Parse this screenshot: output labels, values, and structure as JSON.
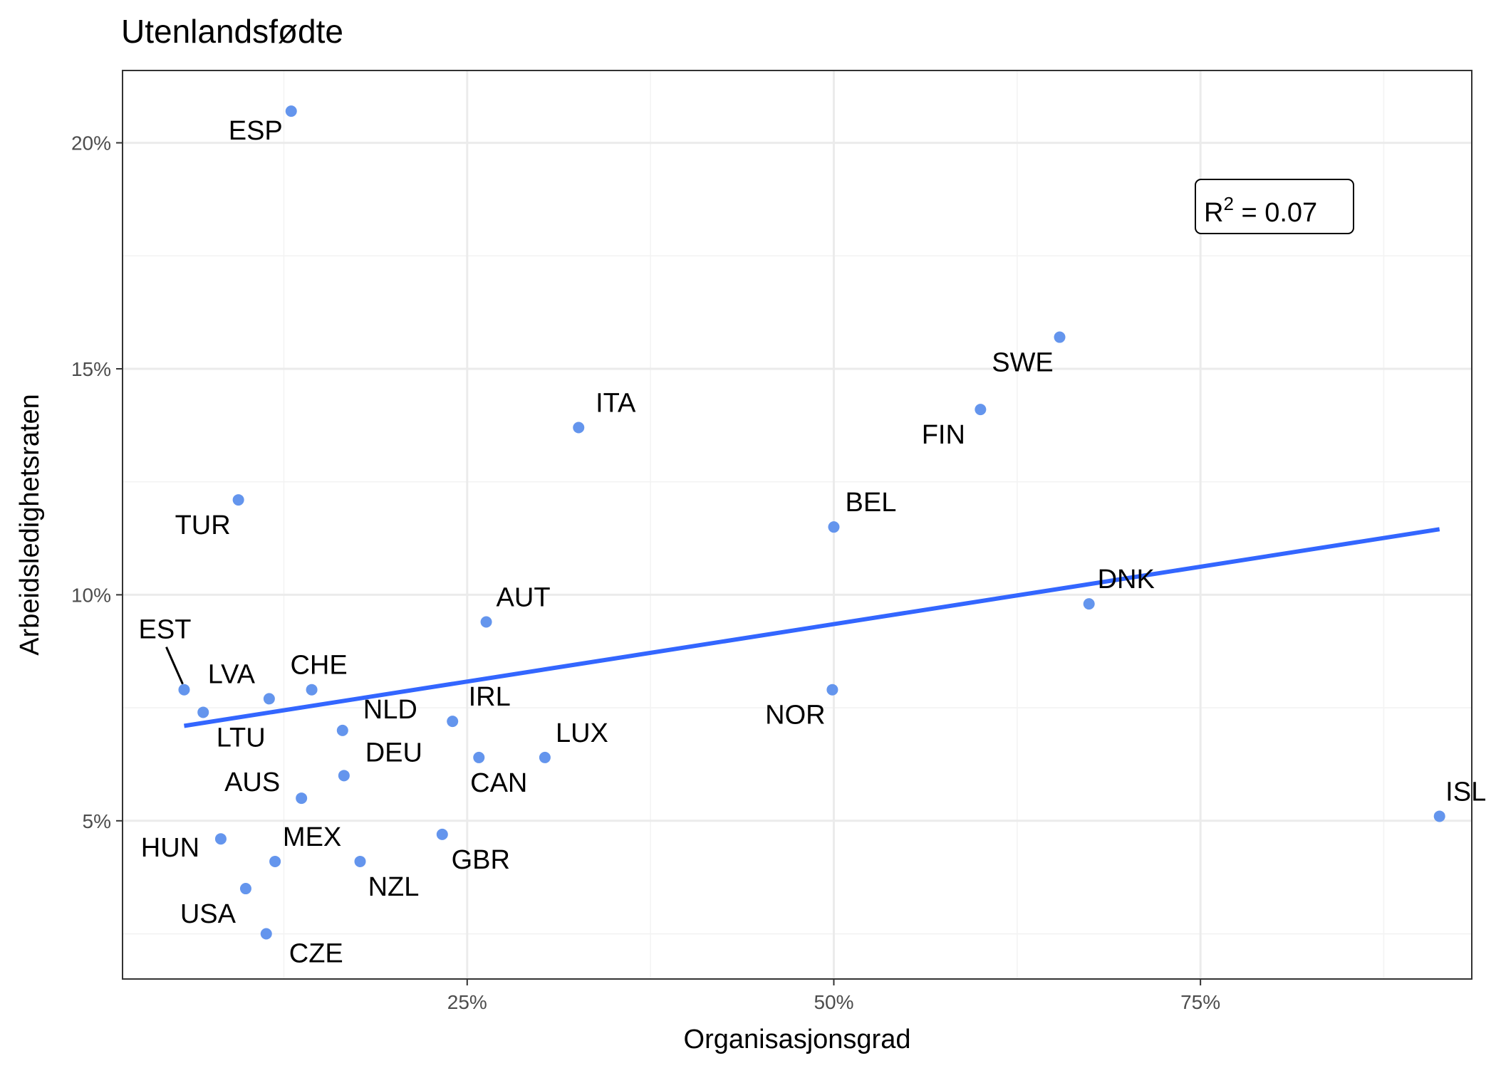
{
  "chart_data": {
    "type": "scatter",
    "title": "Utenlandsfødte",
    "xlabel": "Organisasjonsgrad",
    "ylabel": "Arbeidsledighetsraten",
    "xlim": [
      1.5,
      93.5
    ],
    "ylim": [
      1.5,
      21.6
    ],
    "x_ticks": [
      25,
      50,
      75
    ],
    "x_tick_labels": [
      "25%",
      "50%",
      "75%"
    ],
    "y_ticks": [
      5,
      10,
      15,
      20
    ],
    "y_tick_labels": [
      "5%",
      "10%",
      "15%",
      "20%"
    ],
    "grid": true,
    "point_color": "#6495ED",
    "line_color": "#3366FF",
    "points": [
      {
        "label": "ESP",
        "x": 13.0,
        "y": 20.7
      },
      {
        "label": "SWE",
        "x": 65.4,
        "y": 15.7
      },
      {
        "label": "FIN",
        "x": 60.0,
        "y": 14.1
      },
      {
        "label": "ITA",
        "x": 32.6,
        "y": 13.7
      },
      {
        "label": "TUR",
        "x": 9.4,
        "y": 12.1
      },
      {
        "label": "BEL",
        "x": 50.0,
        "y": 11.5
      },
      {
        "label": "DNK",
        "x": 67.4,
        "y": 9.8
      },
      {
        "label": "AUT",
        "x": 26.3,
        "y": 9.4
      },
      {
        "label": "EST",
        "x": 5.7,
        "y": 7.9
      },
      {
        "label": "CHE",
        "x": 14.4,
        "y": 7.9
      },
      {
        "label": "NOR",
        "x": 49.9,
        "y": 7.9
      },
      {
        "label": "LVA",
        "x": 11.5,
        "y": 7.7
      },
      {
        "label": "LTU",
        "x": 7.0,
        "y": 7.4
      },
      {
        "label": "IRL",
        "x": 24.0,
        "y": 7.2
      },
      {
        "label": "NLD",
        "x": 16.5,
        "y": 7.0
      },
      {
        "label": "CAN",
        "x": 25.8,
        "y": 6.4
      },
      {
        "label": "LUX",
        "x": 30.3,
        "y": 6.4
      },
      {
        "label": "DEU",
        "x": 16.6,
        "y": 6.0
      },
      {
        "label": "AUS",
        "x": 13.7,
        "y": 5.5
      },
      {
        "label": "ISL",
        "x": 91.3,
        "y": 5.1
      },
      {
        "label": "GBR",
        "x": 23.3,
        "y": 4.7
      },
      {
        "label": "HUN",
        "x": 8.2,
        "y": 4.6
      },
      {
        "label": "MEX",
        "x": 11.9,
        "y": 4.1
      },
      {
        "label": "NZL",
        "x": 17.7,
        "y": 4.1
      },
      {
        "label": "USA",
        "x": 9.9,
        "y": 3.5
      },
      {
        "label": "CZE",
        "x": 11.3,
        "y": 2.5
      }
    ],
    "fit_line": {
      "x": [
        5.7,
        91.3
      ],
      "y": [
        7.1,
        11.45
      ]
    },
    "annotation": {
      "r2_label": "R",
      "r2_superscript": "2",
      "r2_value": " = 0.07",
      "position": "top-right"
    }
  }
}
